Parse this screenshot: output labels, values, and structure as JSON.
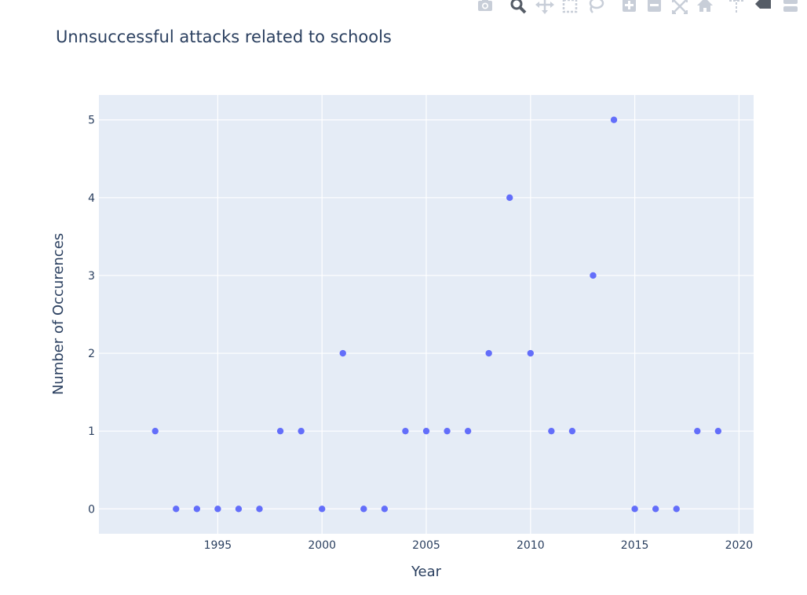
{
  "chart_data": {
    "type": "scatter",
    "title": "Unnsuccessful attacks related to schools",
    "xlabel": "Year",
    "ylabel": "Number of Occurences",
    "xlim": [
      1989.3,
      2020.7
    ],
    "ylim": [
      -0.32,
      5.32
    ],
    "x_ticks": [
      1995,
      2000,
      2005,
      2010,
      2015,
      2020
    ],
    "y_ticks": [
      0,
      1,
      2,
      3,
      4,
      5
    ],
    "grid": true,
    "legend": "none",
    "colors": {
      "marker": "#636efa",
      "plot_background": "#e5ecf6",
      "grid": "#ffffff",
      "text": "#2a3f5f"
    },
    "x": [
      1992,
      1993,
      1994,
      1995,
      1996,
      1997,
      1998,
      1999,
      2000,
      2001,
      2002,
      2003,
      2004,
      2005,
      2006,
      2007,
      2008,
      2009,
      2010,
      2011,
      2012,
      2013,
      2014,
      2015,
      2016,
      2017,
      2018,
      2019
    ],
    "y": [
      1,
      0,
      0,
      0,
      0,
      0,
      1,
      1,
      0,
      2,
      0,
      0,
      1,
      1,
      1,
      1,
      2,
      4,
      2,
      1,
      1,
      3,
      5,
      0,
      0,
      0,
      1,
      1
    ]
  },
  "toolbar": {
    "icons": [
      "camera-icon",
      "zoom-icon",
      "pan-icon",
      "box-select-icon",
      "lasso-select-icon",
      "zoom-in-icon",
      "zoom-out-icon",
      "autoscale-icon",
      "reset-axes-icon",
      "spike-lines-icon",
      "hover-closest-icon",
      "hover-compare-icon"
    ]
  }
}
